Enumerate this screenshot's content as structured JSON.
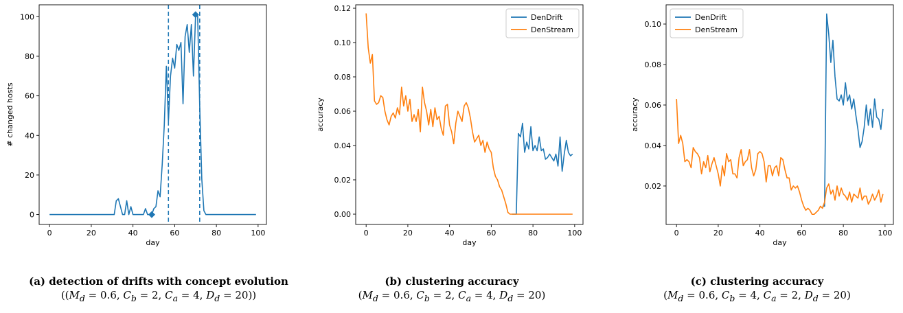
{
  "colors": {
    "dendrift": "#1f77b4",
    "denstream": "#ff7f0e"
  },
  "chart_data": [
    {
      "type": "line",
      "caption": "(a) detection of drifts with concept evolution",
      "caption_params": "((M_d = 0.6, C_b = 2, C_a = 4, D_d = 20))",
      "xlabel": "day",
      "ylabel": "# changed hosts",
      "xlim": [
        -5,
        104
      ],
      "ylim": [
        -5,
        106
      ],
      "xticks": [
        0,
        20,
        40,
        60,
        80,
        100
      ],
      "yticks": [
        0,
        20,
        40,
        60,
        80,
        100
      ],
      "vlines": [
        57,
        72
      ],
      "markers": [
        {
          "x": 49,
          "y": 0
        },
        {
          "x": 70,
          "y": 101
        }
      ],
      "series": [
        {
          "x": [
            0,
            1,
            2,
            3,
            4,
            5,
            6,
            7,
            8,
            9,
            10,
            11,
            12,
            13,
            14,
            15,
            16,
            17,
            18,
            19,
            20,
            21,
            22,
            23,
            24,
            25,
            26,
            27,
            28,
            29,
            30,
            31,
            32,
            33,
            34,
            35,
            36,
            37,
            38,
            39,
            40,
            41,
            42,
            43,
            44,
            45,
            46,
            47,
            48,
            49,
            50,
            51,
            52,
            53,
            54,
            55,
            56,
            57,
            58,
            59,
            60,
            61,
            62,
            63,
            64,
            65,
            66,
            67,
            68,
            69,
            70,
            71,
            72,
            73,
            74,
            75,
            76,
            77,
            78,
            79,
            80,
            81,
            82,
            83,
            84,
            85,
            86,
            87,
            88,
            89,
            90,
            91,
            92,
            93,
            94,
            95,
            96,
            97,
            98,
            99
          ],
          "values": [
            0,
            0,
            0,
            0,
            0,
            0,
            0,
            0,
            0,
            0,
            0,
            0,
            0,
            0,
            0,
            0,
            0,
            0,
            0,
            0,
            0,
            0,
            0,
            0,
            0,
            0,
            0,
            0,
            0,
            0,
            0,
            0,
            7,
            8,
            4,
            0,
            0,
            7,
            0,
            4,
            0,
            0,
            0,
            0,
            0,
            0,
            3,
            0,
            0,
            0,
            3,
            4,
            12,
            9,
            25,
            45,
            75,
            47,
            70,
            79,
            74,
            86,
            83,
            87,
            56,
            90,
            96,
            82,
            96,
            70,
            100,
            101,
            55,
            18,
            2,
            0,
            0,
            0,
            0,
            0,
            0,
            0,
            0,
            0,
            0,
            0,
            0,
            0,
            0,
            0,
            0,
            0,
            0,
            0,
            0,
            0,
            0,
            0,
            0,
            0
          ]
        }
      ]
    },
    {
      "type": "line",
      "caption": "(b) clustering accuracy",
      "caption_params": "(M_d = 0.6, C_b = 2, C_a = 4, D_d = 20)",
      "xlabel": "day",
      "ylabel": "accuracy",
      "xlim": [
        -5,
        104
      ],
      "ylim": [
        -0.006,
        0.122
      ],
      "xticks": [
        0,
        20,
        40,
        60,
        80,
        100
      ],
      "yticks": [
        0.0,
        0.02,
        0.04,
        0.06,
        0.08,
        0.1,
        0.12
      ],
      "yticklabels": [
        "0.00",
        "0.02",
        "0.04",
        "0.06",
        "0.08",
        "0.10",
        "0.12"
      ],
      "legend": "top-right",
      "series": [
        {
          "name": "DenDrift",
          "x": [
            70,
            71,
            72,
            73,
            74,
            75,
            76,
            77,
            78,
            79,
            80,
            81,
            82,
            83,
            84,
            85,
            86,
            87,
            88,
            89,
            90,
            91,
            92,
            93,
            94,
            95,
            96,
            97,
            98,
            99
          ],
          "values": [
            0.0,
            0.0,
            0.0,
            0.047,
            0.045,
            0.053,
            0.036,
            0.042,
            0.038,
            0.051,
            0.037,
            0.04,
            0.037,
            0.045,
            0.037,
            0.038,
            0.032,
            0.033,
            0.035,
            0.033,
            0.031,
            0.035,
            0.028,
            0.045,
            0.025,
            0.035,
            0.043,
            0.036,
            0.034,
            0.035
          ]
        },
        {
          "name": "DenStream",
          "x": [
            0,
            1,
            2,
            3,
            4,
            5,
            6,
            7,
            8,
            9,
            10,
            11,
            12,
            13,
            14,
            15,
            16,
            17,
            18,
            19,
            20,
            21,
            22,
            23,
            24,
            25,
            26,
            27,
            28,
            29,
            30,
            31,
            32,
            33,
            34,
            35,
            36,
            37,
            38,
            39,
            40,
            41,
            42,
            43,
            44,
            45,
            46,
            47,
            48,
            49,
            50,
            51,
            52,
            53,
            54,
            55,
            56,
            57,
            58,
            59,
            60,
            61,
            62,
            63,
            64,
            65,
            66,
            67,
            68,
            69,
            70,
            71,
            72,
            73,
            74,
            75,
            76,
            77,
            78,
            79,
            80,
            81,
            82,
            83,
            84,
            85,
            86,
            87,
            88,
            89,
            90,
            91,
            92,
            93,
            94,
            95,
            96,
            97,
            98,
            99
          ],
          "values": [
            0.117,
            0.097,
            0.088,
            0.093,
            0.066,
            0.064,
            0.065,
            0.069,
            0.068,
            0.06,
            0.055,
            0.052,
            0.057,
            0.059,
            0.056,
            0.062,
            0.058,
            0.074,
            0.063,
            0.069,
            0.06,
            0.067,
            0.054,
            0.058,
            0.054,
            0.061,
            0.048,
            0.074,
            0.065,
            0.06,
            0.052,
            0.061,
            0.051,
            0.062,
            0.055,
            0.057,
            0.05,
            0.046,
            0.063,
            0.064,
            0.052,
            0.048,
            0.041,
            0.053,
            0.06,
            0.057,
            0.054,
            0.063,
            0.065,
            0.062,
            0.056,
            0.048,
            0.042,
            0.044,
            0.046,
            0.04,
            0.043,
            0.036,
            0.042,
            0.038,
            0.036,
            0.027,
            0.022,
            0.02,
            0.016,
            0.014,
            0.01,
            0.006,
            0.001,
            0.0,
            0.0,
            0.0,
            0.0,
            0.0,
            0.0,
            0.0,
            0.0,
            0.0,
            0.0,
            0.0,
            0.0,
            0.0,
            0.0,
            0.0,
            0.0,
            0.0,
            0.0,
            0.0,
            0.0,
            0.0,
            0.0,
            0.0,
            0.0,
            0.0,
            0.0,
            0.0,
            0.0,
            0.0,
            0.0,
            0.0
          ]
        }
      ]
    },
    {
      "type": "line",
      "caption": "(c) clustering accuracy",
      "caption_params": "(M_d = 0.6, C_b = 4, C_a = 2, D_d = 20)",
      "xlabel": "day",
      "ylabel": "accuracy",
      "xlim": [
        -5,
        104
      ],
      "ylim": [
        0.001,
        0.1095
      ],
      "xticks": [
        0,
        20,
        40,
        60,
        80,
        100
      ],
      "yticks": [
        0.02,
        0.04,
        0.06,
        0.08,
        0.1
      ],
      "yticklabels": [
        "0.02",
        "0.04",
        "0.06",
        "0.08",
        "0.10"
      ],
      "legend": "top-left",
      "series": [
        {
          "name": "DenDrift",
          "x": [
            70,
            71,
            72,
            73,
            74,
            75,
            76,
            77,
            78,
            79,
            80,
            81,
            82,
            83,
            84,
            85,
            86,
            87,
            88,
            89,
            90,
            91,
            92,
            93,
            94,
            95,
            96,
            97,
            98,
            99
          ],
          "values": [
            0.01,
            0.01,
            0.105,
            0.095,
            0.081,
            0.092,
            0.074,
            0.063,
            0.062,
            0.065,
            0.06,
            0.071,
            0.062,
            0.065,
            0.058,
            0.063,
            0.055,
            0.048,
            0.039,
            0.042,
            0.049,
            0.06,
            0.05,
            0.058,
            0.049,
            0.063,
            0.054,
            0.053,
            0.048,
            0.058
          ]
        },
        {
          "name": "DenStream",
          "x": [
            0,
            1,
            2,
            3,
            4,
            5,
            6,
            7,
            8,
            9,
            10,
            11,
            12,
            13,
            14,
            15,
            16,
            17,
            18,
            19,
            20,
            21,
            22,
            23,
            24,
            25,
            26,
            27,
            28,
            29,
            30,
            31,
            32,
            33,
            34,
            35,
            36,
            37,
            38,
            39,
            40,
            41,
            42,
            43,
            44,
            45,
            46,
            47,
            48,
            49,
            50,
            51,
            52,
            53,
            54,
            55,
            56,
            57,
            58,
            59,
            60,
            61,
            62,
            63,
            64,
            65,
            66,
            67,
            68,
            69,
            70,
            71,
            72,
            73,
            74,
            75,
            76,
            77,
            78,
            79,
            80,
            81,
            82,
            83,
            84,
            85,
            86,
            87,
            88,
            89,
            90,
            91,
            92,
            93,
            94,
            95,
            96,
            97,
            98,
            99
          ],
          "values": [
            0.063,
            0.041,
            0.045,
            0.041,
            0.032,
            0.033,
            0.032,
            0.029,
            0.039,
            0.037,
            0.036,
            0.034,
            0.026,
            0.032,
            0.029,
            0.035,
            0.027,
            0.031,
            0.034,
            0.03,
            0.026,
            0.02,
            0.03,
            0.025,
            0.036,
            0.032,
            0.033,
            0.026,
            0.026,
            0.024,
            0.034,
            0.038,
            0.03,
            0.032,
            0.033,
            0.038,
            0.029,
            0.025,
            0.028,
            0.036,
            0.037,
            0.036,
            0.032,
            0.022,
            0.03,
            0.03,
            0.025,
            0.029,
            0.03,
            0.025,
            0.034,
            0.033,
            0.028,
            0.024,
            0.024,
            0.018,
            0.02,
            0.019,
            0.02,
            0.017,
            0.013,
            0.01,
            0.008,
            0.009,
            0.008,
            0.006,
            0.006,
            0.007,
            0.008,
            0.01,
            0.009,
            0.012,
            0.019,
            0.021,
            0.016,
            0.018,
            0.013,
            0.02,
            0.015,
            0.019,
            0.016,
            0.015,
            0.013,
            0.017,
            0.012,
            0.016,
            0.015,
            0.014,
            0.019,
            0.013,
            0.015,
            0.015,
            0.011,
            0.013,
            0.016,
            0.013,
            0.015,
            0.018,
            0.012,
            0.016
          ]
        }
      ]
    }
  ]
}
